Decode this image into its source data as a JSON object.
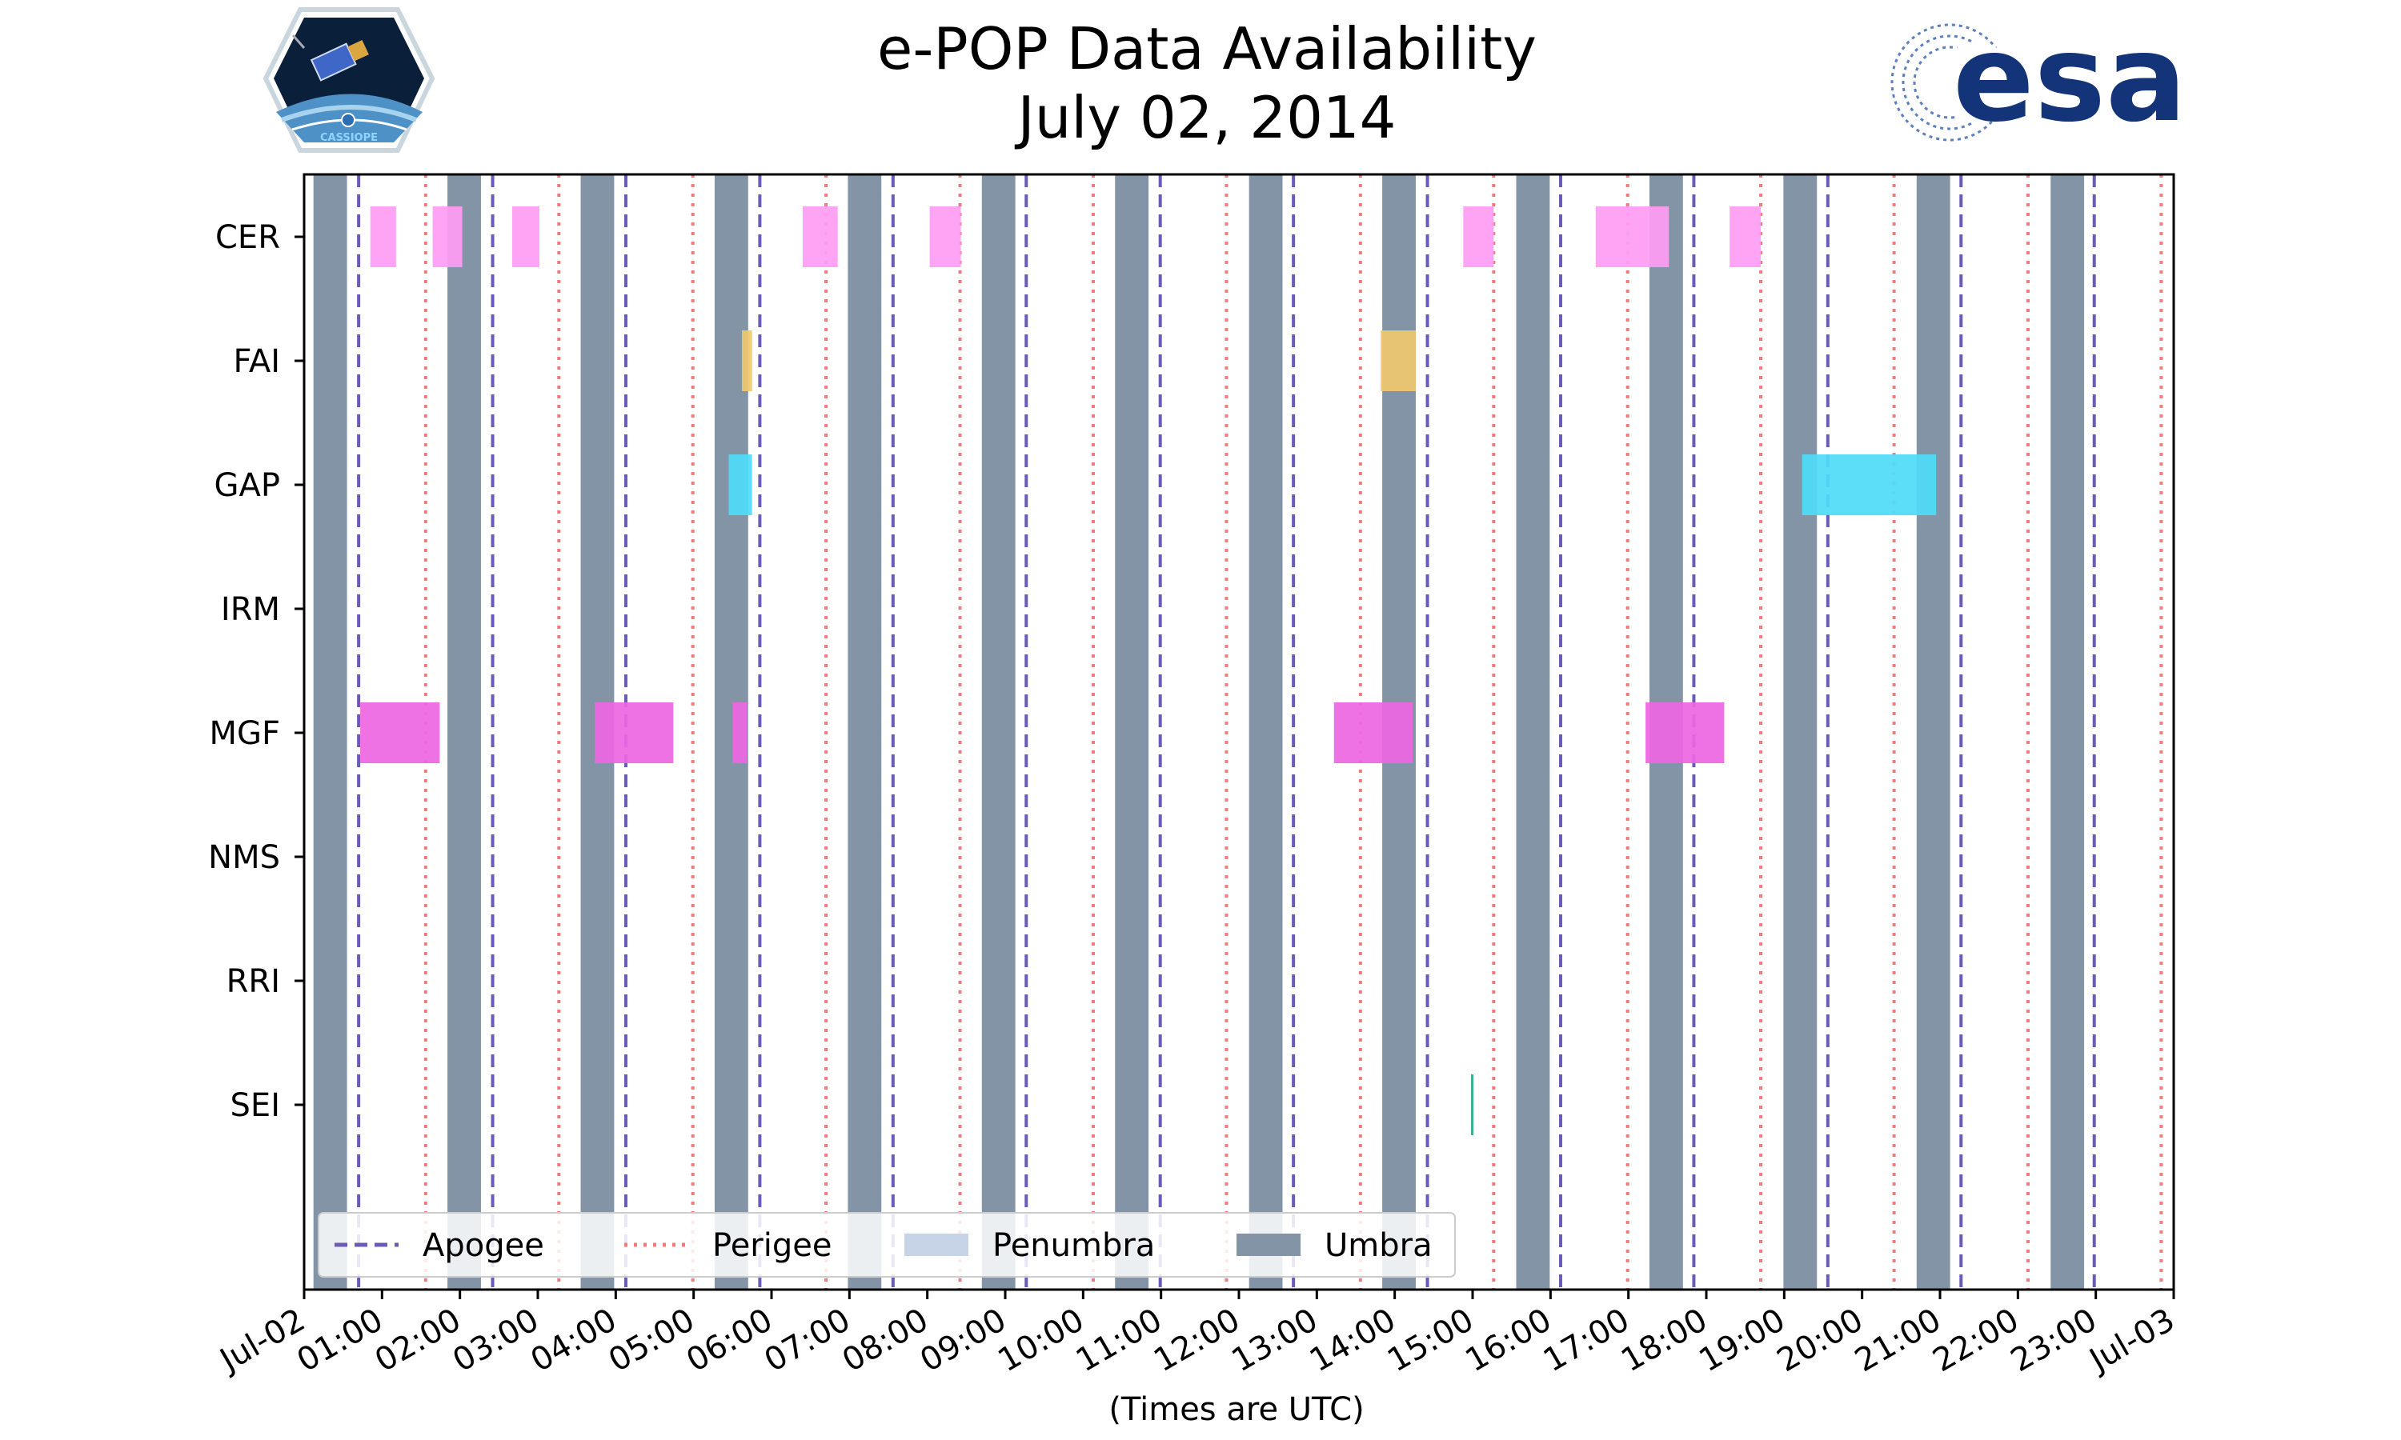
{
  "chart_data": {
    "type": "timeline",
    "title": "e-POP Data Availability",
    "subtitle": "July 02, 2014",
    "xlabel": "(Times are UTC)",
    "x_range_hours": [
      0,
      24
    ],
    "x_tick_labels": [
      "Jul-02",
      "01:00",
      "02:00",
      "03:00",
      "04:00",
      "05:00",
      "06:00",
      "07:00",
      "08:00",
      "09:00",
      "10:00",
      "11:00",
      "12:00",
      "13:00",
      "14:00",
      "15:00",
      "16:00",
      "17:00",
      "18:00",
      "19:00",
      "20:00",
      "21:00",
      "22:00",
      "23:00",
      "Jul-03"
    ],
    "instruments": [
      "CER",
      "FAI",
      "GAP",
      "IRM",
      "MGF",
      "NMS",
      "RRI",
      "SEI"
    ],
    "umbra": [
      [
        0.12,
        0.55
      ],
      [
        1.84,
        2.27
      ],
      [
        3.55,
        3.98
      ],
      [
        5.27,
        5.7
      ],
      [
        6.98,
        7.41
      ],
      [
        8.7,
        9.13
      ],
      [
        10.41,
        10.84
      ],
      [
        12.13,
        12.56
      ],
      [
        13.84,
        14.27
      ],
      [
        15.56,
        15.99
      ],
      [
        17.27,
        17.7
      ],
      [
        18.99,
        19.42
      ],
      [
        20.7,
        21.13
      ],
      [
        22.42,
        22.85
      ]
    ],
    "apogee_hours": [
      0.7,
      2.42,
      4.13,
      5.85,
      7.56,
      9.27,
      10.99,
      12.7,
      14.42,
      16.13,
      17.84,
      19.56,
      21.27,
      22.98
    ],
    "perigee_hours": [
      1.56,
      3.27,
      4.99,
      6.7,
      8.42,
      10.13,
      11.84,
      13.56,
      15.27,
      16.99,
      18.7,
      20.41,
      22.13,
      23.84
    ],
    "availability": {
      "CER": [
        [
          0.85,
          1.18
        ],
        [
          1.65,
          2.03
        ],
        [
          2.67,
          3.02
        ],
        [
          6.4,
          6.85
        ],
        [
          8.03,
          8.43
        ],
        [
          14.88,
          15.27
        ],
        [
          16.58,
          17.52
        ],
        [
          18.3,
          18.7
        ]
      ],
      "FAI": [
        [
          5.62,
          5.75
        ],
        [
          13.82,
          14.27
        ]
      ],
      "GAP": [
        [
          5.45,
          5.75
        ],
        [
          19.23,
          20.95
        ]
      ],
      "IRM": [],
      "MGF": [
        [
          0.72,
          1.74
        ],
        [
          3.73,
          4.74
        ],
        [
          5.5,
          5.69
        ],
        [
          13.22,
          14.23
        ],
        [
          17.22,
          18.23
        ]
      ],
      "NMS": [],
      "RRI": [],
      "SEI": [
        [
          14.98,
          15.01
        ]
      ]
    },
    "instrument_colors": {
      "CER": "#ff9cf4",
      "FAI": "#f0c870",
      "GAP": "#4fdbf7",
      "IRM": "#888888",
      "MGF": "#ee66e2",
      "NMS": "#888888",
      "RRI": "#888888",
      "SEI": "#2aa88a"
    },
    "legend": [
      {
        "label": "Apogee",
        "style": "dashed",
        "color": "#6a5bb8"
      },
      {
        "label": "Perigee",
        "style": "dotted",
        "color": "#f07b7b"
      },
      {
        "label": "Penumbra",
        "style": "patch",
        "color": "#c7d3e6"
      },
      {
        "label": "Umbra",
        "style": "patch",
        "color": "#8394a6"
      }
    ],
    "legend_position": "lower-left",
    "umbra_color": "#8394a6",
    "apogee_color": "#6a5bb8",
    "perigee_color": "#f07b7b"
  },
  "logos": {
    "left_logo_text": "CASSIOPE",
    "right_logo_text": "esa",
    "right_logo_color": "#14347a"
  }
}
